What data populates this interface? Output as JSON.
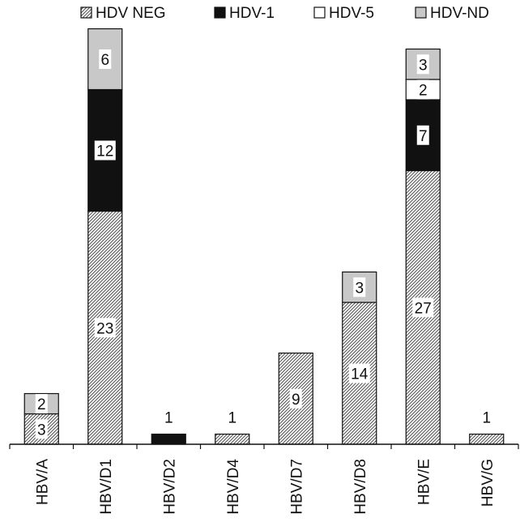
{
  "chart_data": {
    "type": "bar",
    "stacked": true,
    "categories": [
      "HBV/A",
      "HBV/D1",
      "HBV/D2",
      "HBV/D4",
      "HBV/D7",
      "HBV/D8",
      "HBV/E",
      "HBV/G"
    ],
    "series": [
      {
        "name": "HDV NEG",
        "pattern": "diagonal-hatch",
        "values": [
          3,
          23,
          0,
          1,
          9,
          14,
          27,
          1
        ]
      },
      {
        "name": "HDV-1",
        "color": "#111111",
        "values": [
          0,
          12,
          1,
          0,
          0,
          0,
          7,
          0
        ]
      },
      {
        "name": "HDV-5",
        "color": "#ffffff",
        "values": [
          0,
          0,
          0,
          0,
          0,
          0,
          2,
          0
        ]
      },
      {
        "name": "HDV-ND",
        "color": "#c8c8c8",
        "values": [
          2,
          6,
          0,
          0,
          0,
          3,
          3,
          0
        ]
      }
    ],
    "data_labels": [
      {
        "category": "HBV/A",
        "series": "HDV NEG",
        "text": "3"
      },
      {
        "category": "HBV/A",
        "series": "HDV-ND",
        "text": "2"
      },
      {
        "category": "HBV/D1",
        "series": "HDV NEG",
        "text": "23"
      },
      {
        "category": "HBV/D1",
        "series": "HDV-1",
        "text": "12"
      },
      {
        "category": "HBV/D1",
        "series": "HDV-ND",
        "text": "6"
      },
      {
        "category": "HBV/D2",
        "series": "HDV-1",
        "text": "1",
        "outside": true
      },
      {
        "category": "HBV/D4",
        "series": "HDV NEG",
        "text": "1",
        "outside": true
      },
      {
        "category": "HBV/D7",
        "series": "HDV NEG",
        "text": "9"
      },
      {
        "category": "HBV/D8",
        "series": "HDV NEG",
        "text": "14"
      },
      {
        "category": "HBV/D8",
        "series": "HDV-ND",
        "text": "3"
      },
      {
        "category": "HBV/E",
        "series": "HDV NEG",
        "text": "27"
      },
      {
        "category": "HBV/E",
        "series": "HDV-1",
        "text": "7"
      },
      {
        "category": "HBV/E",
        "series": "HDV-5",
        "text": "2"
      },
      {
        "category": "HBV/E",
        "series": "HDV-ND",
        "text": "3"
      },
      {
        "category": "HBV/G",
        "series": "HDV NEG",
        "text": "1",
        "outside": true
      }
    ],
    "legend_position": "top",
    "ylim": [
      0,
      42
    ],
    "grid": false,
    "title": "",
    "xlabel": "",
    "ylabel": ""
  }
}
